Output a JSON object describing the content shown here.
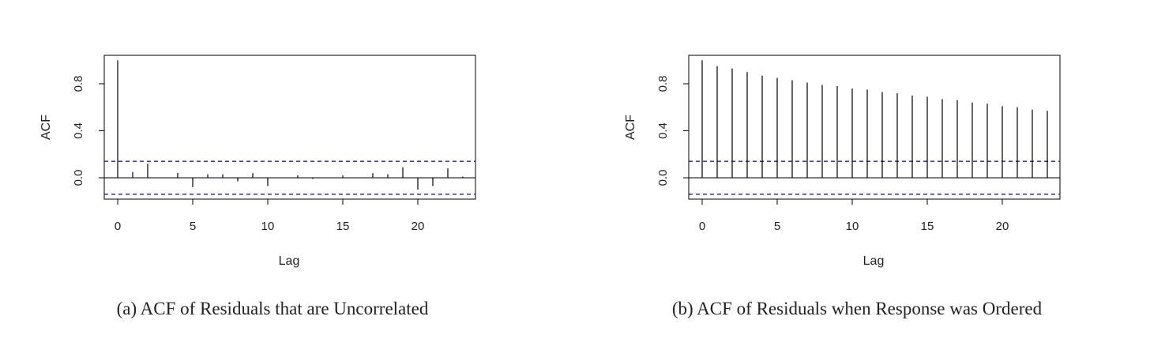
{
  "chart_data": [
    {
      "type": "bar",
      "caption": "(a) ACF of Residuals that are Uncorrelated",
      "xlabel": "Lag",
      "ylabel": "ACF",
      "xlim": [
        0,
        23
      ],
      "ylim": [
        -0.15,
        1.0
      ],
      "xticks": [
        "0",
        "5",
        "10",
        "15",
        "20"
      ],
      "yticks": [
        "0.0",
        "0.4",
        "0.8"
      ],
      "ci_lines": [
        0.14,
        -0.14
      ],
      "ci_color": "#1f1f8f",
      "lags": [
        0,
        1,
        2,
        3,
        4,
        5,
        6,
        7,
        8,
        9,
        10,
        11,
        12,
        13,
        14,
        15,
        16,
        17,
        18,
        19,
        20,
        21,
        22,
        23
      ],
      "values": [
        1.0,
        0.05,
        0.12,
        0.0,
        0.04,
        -0.08,
        0.03,
        0.03,
        -0.03,
        0.04,
        -0.07,
        0.0,
        0.02,
        -0.01,
        0.0,
        0.02,
        0.0,
        0.04,
        0.03,
        0.09,
        -0.1,
        -0.07,
        0.08,
        0.01
      ],
      "grid": false
    },
    {
      "type": "bar",
      "caption": "(b) ACF of Residuals when Response was Ordered",
      "xlabel": "Lag",
      "ylabel": "ACF",
      "xlim": [
        0,
        23
      ],
      "ylim": [
        -0.15,
        1.0
      ],
      "xticks": [
        "0",
        "5",
        "10",
        "15",
        "20"
      ],
      "yticks": [
        "0.0",
        "0.4",
        "0.8"
      ],
      "ci_lines": [
        0.14,
        -0.14
      ],
      "ci_color": "#1f1f8f",
      "lags": [
        0,
        1,
        2,
        3,
        4,
        5,
        6,
        7,
        8,
        9,
        10,
        11,
        12,
        13,
        14,
        15,
        16,
        17,
        18,
        19,
        20,
        21,
        22,
        23
      ],
      "values": [
        1.0,
        0.95,
        0.93,
        0.9,
        0.87,
        0.85,
        0.83,
        0.81,
        0.79,
        0.78,
        0.76,
        0.75,
        0.73,
        0.72,
        0.7,
        0.69,
        0.67,
        0.66,
        0.64,
        0.63,
        0.61,
        0.6,
        0.58,
        0.57
      ],
      "grid": false
    }
  ]
}
